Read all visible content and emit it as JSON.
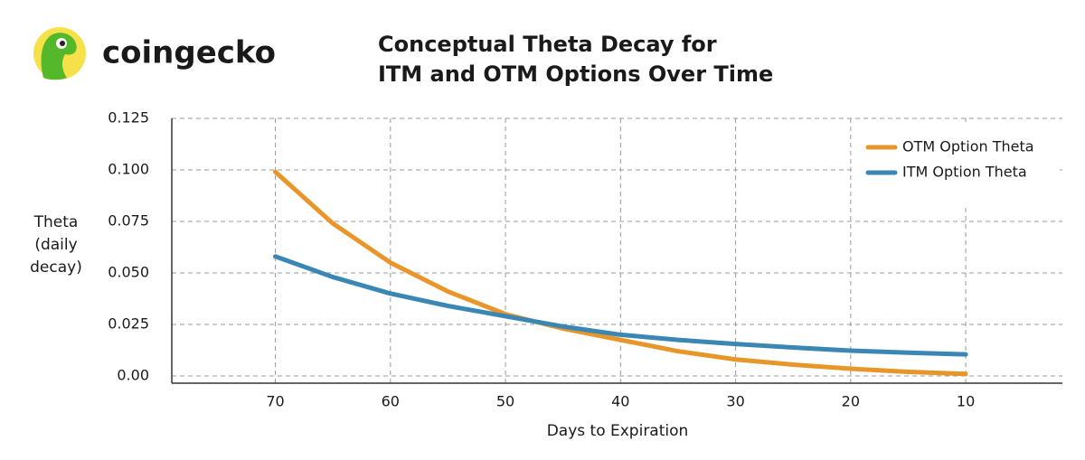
{
  "brand": "coingecko",
  "chart_data": {
    "type": "line",
    "title": [
      "Conceptual Theta Decay for",
      "ITM and OTM Options Over Time"
    ],
    "x_label": "Days to Expiration",
    "y_label": [
      "Theta",
      "(daily",
      "decay)"
    ],
    "x": [
      70,
      65,
      60,
      55,
      50,
      45,
      40,
      35,
      30,
      25,
      20,
      15,
      10
    ],
    "series": [
      {
        "name": "OTM Option Theta",
        "color": "#e8962a",
        "values": [
          0.099,
          0.074,
          0.055,
          0.041,
          0.03,
          0.023,
          0.0175,
          0.012,
          0.008,
          0.0055,
          0.0035,
          0.002,
          0.001
        ]
      },
      {
        "name": "ITM Option Theta",
        "color": "#3a86b4",
        "values": [
          0.058,
          0.048,
          0.04,
          0.034,
          0.029,
          0.024,
          0.02,
          0.0175,
          0.0155,
          0.0138,
          0.0123,
          0.0113,
          0.0105
        ]
      }
    ],
    "xlim": [
      79,
      1.6
    ],
    "xticks": [
      70,
      60,
      50,
      40,
      30,
      20,
      10
    ],
    "ylim": [
      -0.0035,
      0.125
    ],
    "yticks": [
      0.125,
      {
        "value": 0.1,
        "label": "0.100"
      },
      0.075,
      {
        "value": 0.05,
        "label": "0.050"
      },
      0.025,
      {
        "value": 0,
        "label": "0.00"
      }
    ],
    "grid": true,
    "legend": "upper right"
  }
}
